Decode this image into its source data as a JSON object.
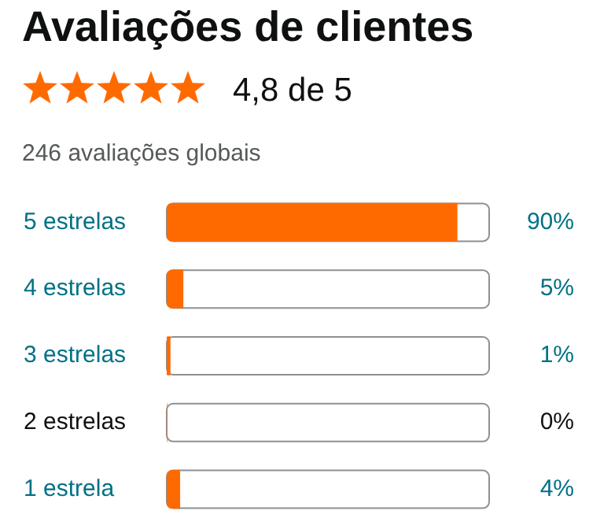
{
  "chart_data": {
    "type": "bar",
    "orientation": "horizontal",
    "title": "Avaliações de clientes",
    "subtitle": "4,8 de 5",
    "annotations": [
      "246 avaliações globais"
    ],
    "categories": [
      "5 estrelas",
      "4 estrelas",
      "3 estrelas",
      "2 estrelas",
      "1 estrela"
    ],
    "values": [
      90,
      5,
      1,
      0,
      4
    ],
    "color": "#ff6a00",
    "value_labels": [
      "90%",
      "5%",
      "1%",
      "0%",
      "4%"
    ],
    "xlim": [
      0,
      100
    ],
    "tick_labels": false
  }
}
